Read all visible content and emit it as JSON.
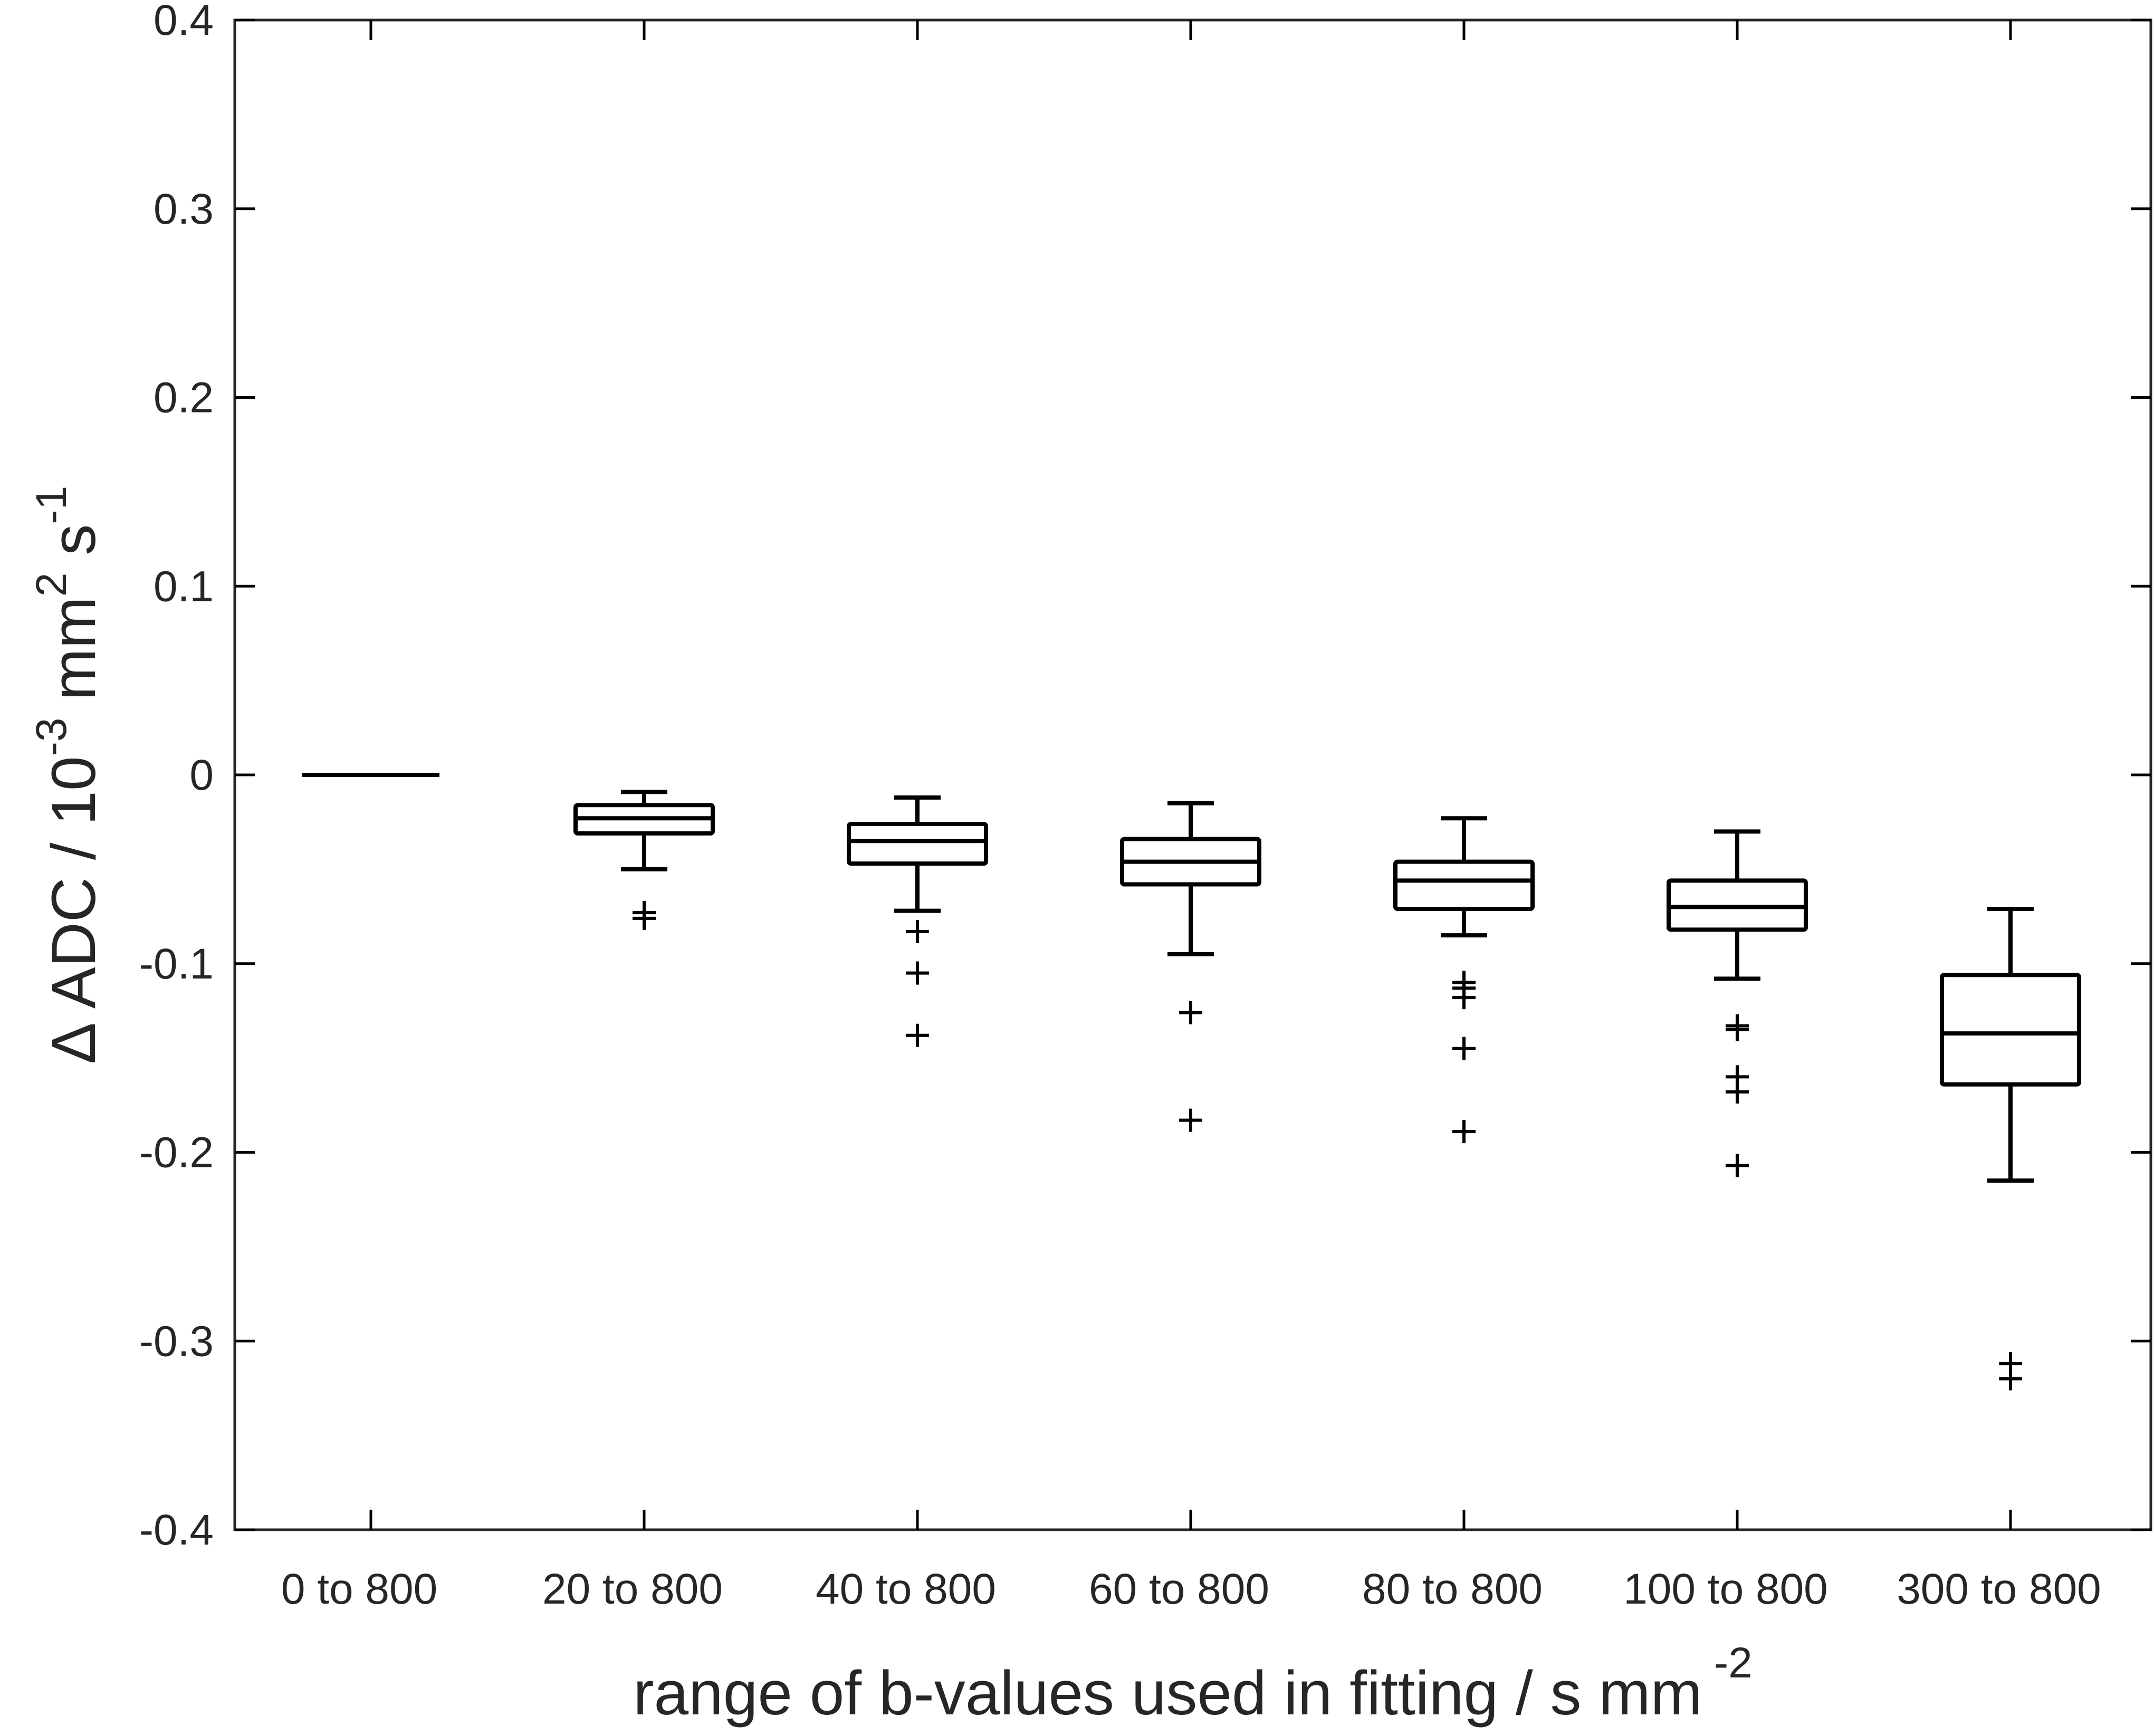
{
  "chart_data": {
    "type": "box",
    "xlabel": "range of b-values used in fitting / s mm",
    "xlabel_superscript": "-2",
    "ylabel_parts": [
      "Δ ADC / 10",
      "-3",
      " mm",
      "2",
      " s",
      "-1"
    ],
    "ylim": [
      -0.4,
      0.4
    ],
    "yticks": [
      "-0.4",
      "-0.3",
      "-0.2",
      "-0.1",
      "0",
      "0.1",
      "0.2",
      "0.3",
      "0.4"
    ],
    "ytick_values": [
      -0.4,
      -0.3,
      -0.2,
      -0.1,
      0,
      0.1,
      0.2,
      0.3,
      0.4
    ],
    "categories": [
      "0 to 800",
      "20 to 800",
      "40 to 800",
      "60 to 800",
      "80 to 800",
      "100 to 800",
      "300 to 800"
    ],
    "boxes": [
      {
        "whisker_low": 0.0,
        "q1": 0.0,
        "median": 0.0,
        "q3": 0.0,
        "whisker_high": 0.0,
        "outliers": []
      },
      {
        "whisker_low": -0.05,
        "q1": -0.031,
        "median": -0.023,
        "q3": -0.016,
        "whisker_high": -0.009,
        "outliers": [
          -0.073,
          -0.076
        ]
      },
      {
        "whisker_low": -0.072,
        "q1": -0.047,
        "median": -0.035,
        "q3": -0.026,
        "whisker_high": -0.012,
        "outliers": [
          -0.083,
          -0.105,
          -0.138
        ]
      },
      {
        "whisker_low": -0.095,
        "q1": -0.058,
        "median": -0.046,
        "q3": -0.034,
        "whisker_high": -0.015,
        "outliers": [
          -0.126,
          -0.183
        ]
      },
      {
        "whisker_low": -0.085,
        "q1": -0.071,
        "median": -0.056,
        "q3": -0.046,
        "whisker_high": -0.023,
        "outliers": [
          -0.11,
          -0.113,
          -0.118,
          -0.145,
          -0.189
        ]
      },
      {
        "whisker_low": -0.108,
        "q1": -0.082,
        "median": -0.07,
        "q3": -0.056,
        "whisker_high": -0.03,
        "outliers": [
          -0.133,
          -0.135,
          -0.16,
          -0.168,
          -0.207
        ]
      },
      {
        "whisker_low": -0.215,
        "q1": -0.164,
        "median": -0.137,
        "q3": -0.106,
        "whisker_high": -0.071,
        "outliers": [
          -0.312,
          -0.32
        ]
      }
    ]
  }
}
